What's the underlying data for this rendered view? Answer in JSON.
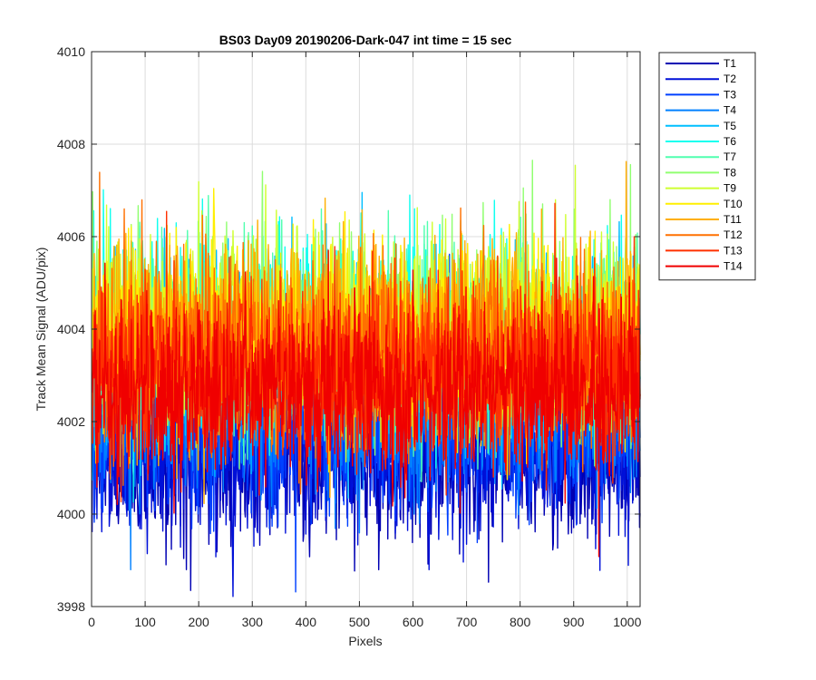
{
  "chart_data": {
    "type": "line",
    "title": "BS03 Day09 20190206-Dark-047 int time = 15 sec",
    "xlabel": "Pixels",
    "ylabel": "Track Mean Signal (ADU/pix)",
    "xlim": [
      0,
      1024
    ],
    "ylim": [
      3998,
      4010
    ],
    "xticks": [
      0,
      100,
      200,
      300,
      400,
      500,
      600,
      700,
      800,
      900,
      1000
    ],
    "yticks": [
      3998,
      4000,
      4002,
      4004,
      4006,
      4008,
      4010
    ],
    "grid": true,
    "legend_position": "outside-top-right",
    "n_points": 1024,
    "series": [
      {
        "name": "T1",
        "color": "#0000b3",
        "mean": 4001.2,
        "noise": 0.9
      },
      {
        "name": "T2",
        "color": "#0010d8",
        "mean": 4001.5,
        "noise": 0.9
      },
      {
        "name": "T3",
        "color": "#0040ff",
        "mean": 4001.9,
        "noise": 0.9
      },
      {
        "name": "T4",
        "color": "#0080ff",
        "mean": 4002.4,
        "noise": 0.95
      },
      {
        "name": "T5",
        "color": "#00bfff",
        "mean": 4003.6,
        "noise": 1.0
      },
      {
        "name": "T6",
        "color": "#10ffef",
        "mean": 4004.0,
        "noise": 1.0
      },
      {
        "name": "T7",
        "color": "#50ffaf",
        "mean": 4003.8,
        "noise": 1.0
      },
      {
        "name": "T8",
        "color": "#90ff70",
        "mean": 4003.9,
        "noise": 1.0
      },
      {
        "name": "T9",
        "color": "#cfff30",
        "mean": 4004.0,
        "noise": 1.0
      },
      {
        "name": "T10",
        "color": "#ffef00",
        "mean": 4004.0,
        "noise": 1.0
      },
      {
        "name": "T11",
        "color": "#ffaf00",
        "mean": 4003.8,
        "noise": 1.0
      },
      {
        "name": "T12",
        "color": "#ff7000",
        "mean": 4003.5,
        "noise": 1.0
      },
      {
        "name": "T13",
        "color": "#ff3000",
        "mean": 4003.1,
        "noise": 1.0
      },
      {
        "name": "T14",
        "color": "#f00000",
        "mean": 4002.7,
        "noise": 0.9
      }
    ]
  }
}
